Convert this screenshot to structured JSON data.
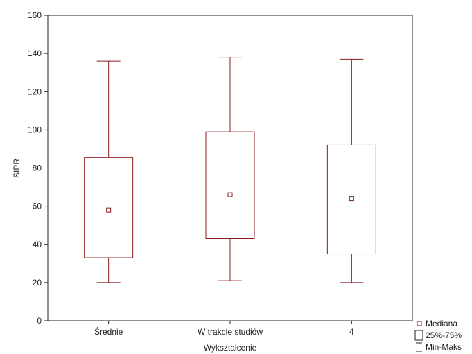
{
  "chart_data": {
    "type": "boxplot",
    "title": "",
    "xlabel": "Wykształcenie",
    "ylabel": "SIPR",
    "ylim": [
      0,
      160
    ],
    "yticks": [
      0,
      20,
      40,
      60,
      80,
      100,
      120,
      140,
      160
    ],
    "categories": [
      "Średnie",
      "W trakcie studiów",
      "4"
    ],
    "series": [
      {
        "category": "Średnie",
        "min": 20,
        "q1": 33,
        "median": 58,
        "q3": 85.5,
        "max": 136
      },
      {
        "category": "W trakcie studiów",
        "min": 21,
        "q1": 43,
        "median": 66,
        "q3": 99,
        "max": 138
      },
      {
        "category": "4",
        "min": 20,
        "q1": 35,
        "median": 64,
        "q3": 92,
        "max": 137
      }
    ],
    "legend": {
      "position": "bottom-right",
      "items": [
        {
          "label": "Mediana",
          "marker": "small-square"
        },
        {
          "label": "25%-75%",
          "marker": "box"
        },
        {
          "label": "Min-Maks",
          "marker": "whisker"
        }
      ]
    },
    "colors": {
      "box": "#8b1a1a",
      "axis": "#222222"
    }
  }
}
